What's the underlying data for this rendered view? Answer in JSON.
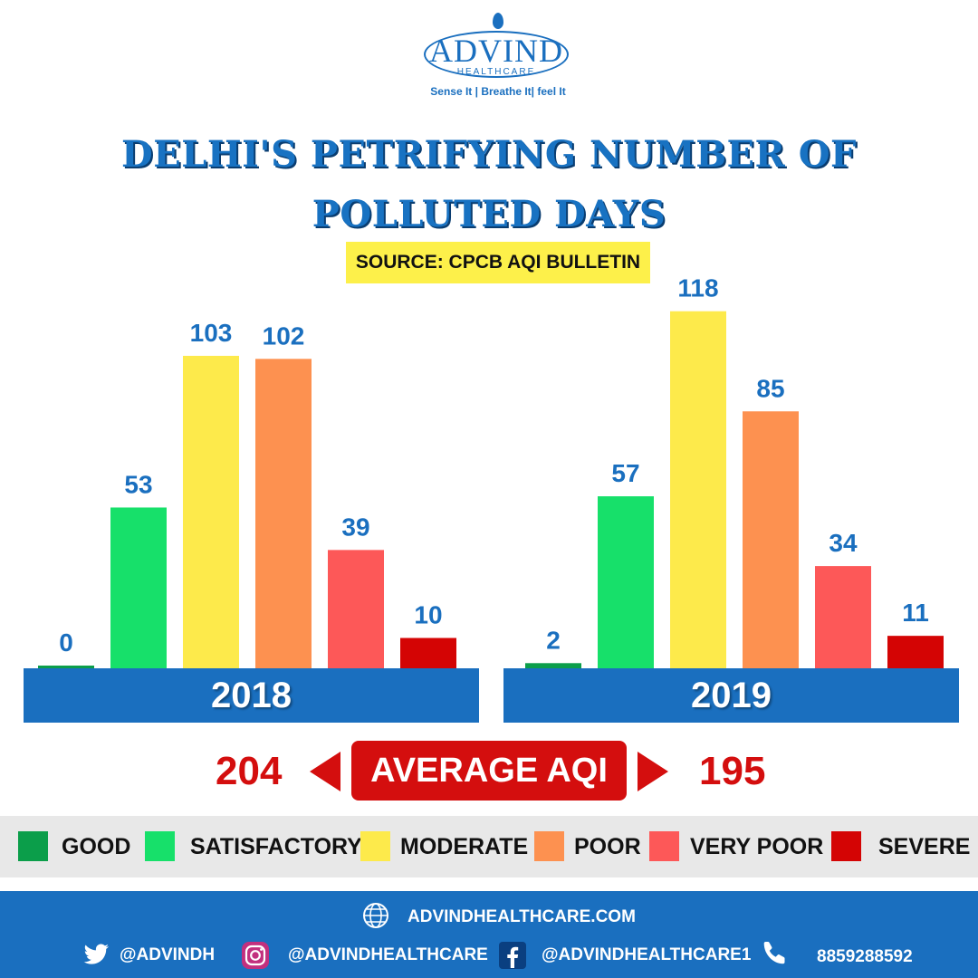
{
  "brand": {
    "logo_name": "ADVIND",
    "logo_sub": "HEALTHCARE",
    "tagline": "Sense It | Breathe It| feel It"
  },
  "title": "DELHI'S PETRIFYING NUMBER OF POLLUTED DAYS",
  "source": "SOURCE: CPCB AQI  BULLETIN",
  "colors": {
    "good": "#0b9e4a",
    "satisfactory": "#17e06a",
    "moderate": "#fdea4b",
    "poor": "#fd9150",
    "very_poor": "#fd5858",
    "severe": "#d40404",
    "brand_blue": "#1a6fbf",
    "accent_red": "#d40e0e"
  },
  "chart_data": [
    {
      "type": "bar",
      "title": "2018",
      "categories": [
        "GOOD",
        "SATISFACTORY",
        "MODERATE",
        "POOR",
        "VERY POOR",
        "SEVERE"
      ],
      "values": [
        0,
        53,
        103,
        102,
        39,
        10
      ],
      "colors": [
        "#0b9e4a",
        "#17e06a",
        "#fdea4b",
        "#fd9150",
        "#fd5858",
        "#d40404"
      ]
    },
    {
      "type": "bar",
      "title": "2019",
      "categories": [
        "GOOD",
        "SATISFACTORY",
        "MODERATE",
        "POOR",
        "VERY POOR",
        "SEVERE"
      ],
      "values": [
        2,
        57,
        118,
        85,
        34,
        11
      ],
      "colors": [
        "#0b9e4a",
        "#17e06a",
        "#fdea4b",
        "#fd9150",
        "#fd5858",
        "#d40404"
      ]
    }
  ],
  "average_aqi": {
    "label": "AVERAGE AQI",
    "year_2018": "204",
    "year_2019": "195"
  },
  "legend": [
    {
      "label": "GOOD",
      "color": "#0b9e4a"
    },
    {
      "label": "SATISFACTORY",
      "color": "#17e06a"
    },
    {
      "label": "MODERATE",
      "color": "#fdea4b"
    },
    {
      "label": "POOR",
      "color": "#fd9150"
    },
    {
      "label": "VERY POOR",
      "color": "#fd5858"
    },
    {
      "label": "SEVERE",
      "color": "#d40404"
    }
  ],
  "footer": {
    "website": "ADVINDHEALTHCARE.COM",
    "twitter": "@ADVINDH",
    "instagram": "@ADVINDHEALTHCARE",
    "facebook": "@ADVINDHEALTHCARE1",
    "phone": "8859288592",
    "icons": [
      "globe-icon",
      "twitter-icon",
      "instagram-icon",
      "facebook-icon",
      "phone-icon"
    ]
  }
}
